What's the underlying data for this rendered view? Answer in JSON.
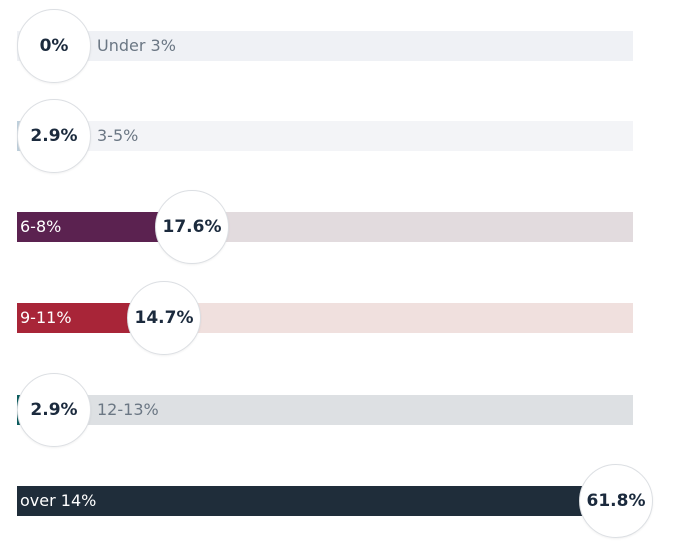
{
  "chart_data": {
    "type": "bar",
    "orientation": "horizontal",
    "categories": [
      "Under 3%",
      "3-5%",
      "6-8%",
      "9-11%",
      "12-13%",
      "over 14%"
    ],
    "values": [
      0,
      2.9,
      17.6,
      14.7,
      2.9,
      61.8
    ],
    "value_labels": [
      "0%",
      "2.9%",
      "17.6%",
      "14.7%",
      "2.9%",
      "61.8%"
    ],
    "colors": [
      "#bfd0dc",
      "#bfd0dc",
      "#5b2250",
      "#a82538",
      "#0c5c5e",
      "#1f2d3a"
    ],
    "track_colors": [
      "#eff1f5",
      "#f3f4f7",
      "#e2dbde",
      "#f0e0de",
      "#dde0e3",
      "#dde0e3"
    ],
    "xlim": [
      0,
      61.8
    ],
    "grid": false,
    "legend": false
  }
}
